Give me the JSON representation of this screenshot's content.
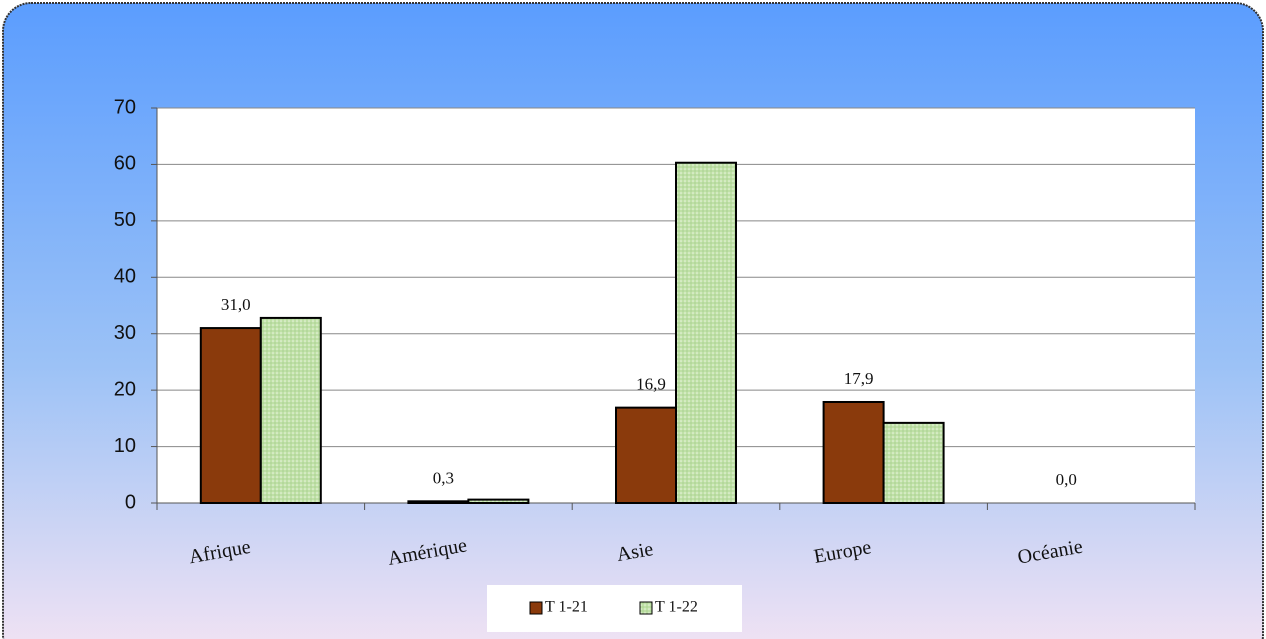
{
  "chart_data": {
    "type": "bar",
    "categories": [
      "Afrique",
      "Amérique",
      "Asie",
      "Europe",
      "Océanie"
    ],
    "series": [
      {
        "name": "T 1-21",
        "color": "#8a3a0c",
        "values": [
          31.0,
          0.3,
          16.9,
          17.9,
          0.0
        ],
        "value_labels": [
          "31,0",
          "0,3",
          "16,9",
          "17,9",
          "0,0"
        ]
      },
      {
        "name": "T 1-22",
        "color": "#bfe0a6",
        "values": [
          32.8,
          0.6,
          60.3,
          14.2,
          0
        ]
      }
    ],
    "ylim": [
      0,
      70
    ],
    "yticks": [
      0,
      10,
      20,
      30,
      40,
      50,
      60,
      70
    ],
    "grid": true,
    "legend": "bottom"
  }
}
